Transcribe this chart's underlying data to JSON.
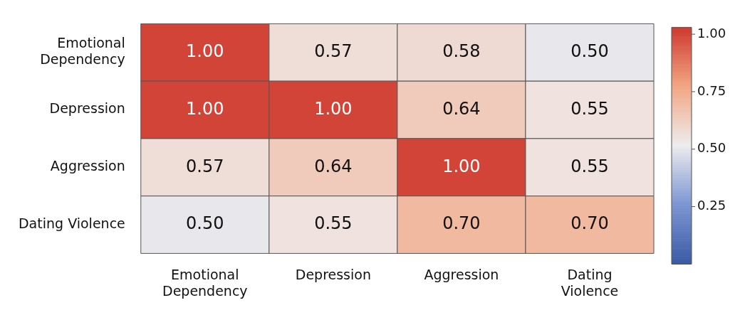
{
  "chart_data": {
    "type": "heatmap",
    "categories": [
      "Emotional Dependency",
      "Depression",
      "Aggression",
      "Dating Violence"
    ],
    "y_categories": [
      "Emotional Dependency",
      "Depression",
      "Aggression",
      "Dating Violence"
    ],
    "cells": [
      [
        1.0,
        0.57,
        0.58,
        0.5
      ],
      [
        1.0,
        1.0,
        0.64,
        0.55
      ],
      [
        0.57,
        0.64,
        1.0,
        0.55
      ],
      [
        0.5,
        0.55,
        0.7,
        0.7
      ]
    ],
    "cell_labels": [
      [
        "1.00",
        "0.57",
        "0.58",
        "0.50"
      ],
      [
        "1.00",
        "1.00",
        "0.64",
        "0.55"
      ],
      [
        "0.57",
        "0.64",
        "1.00",
        "0.55"
      ],
      [
        "0.50",
        "0.55",
        "0.70",
        "0.70"
      ]
    ],
    "clim": [
      0,
      1.03
    ],
    "cticks": [
      {
        "value": 0.25,
        "label": "0.25"
      },
      {
        "value": 0.5,
        "label": "0.50"
      },
      {
        "value": 0.75,
        "label": "0.75"
      },
      {
        "value": 1.0,
        "label": "1.00"
      }
    ]
  }
}
